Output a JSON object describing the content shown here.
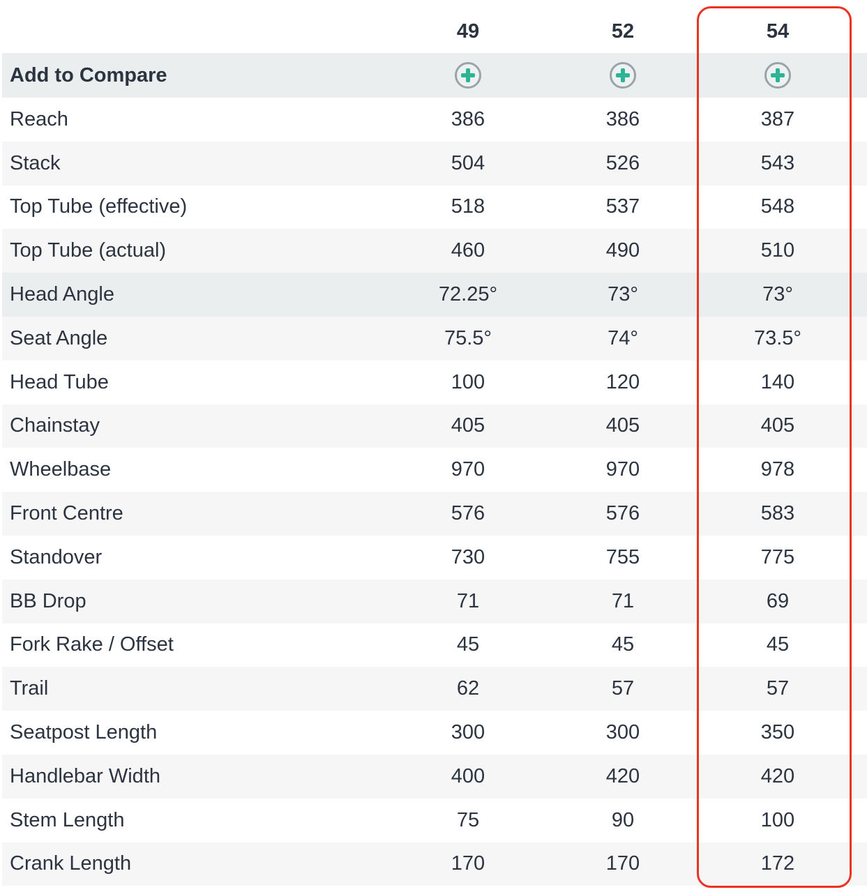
{
  "sizes": [
    "49",
    "52",
    "54"
  ],
  "compare_label": "Add to Compare",
  "highlight_color": "#ec3323",
  "add_icon": "plus-circle-icon",
  "rows": [
    {
      "label": "Reach",
      "values": [
        "386",
        "386",
        "387"
      ]
    },
    {
      "label": "Stack",
      "values": [
        "504",
        "526",
        "543"
      ]
    },
    {
      "label": "Top Tube (effective)",
      "values": [
        "518",
        "537",
        "548"
      ]
    },
    {
      "label": "Top Tube (actual)",
      "values": [
        "460",
        "490",
        "510"
      ]
    },
    {
      "label": "Head Angle",
      "values": [
        "72.25°",
        "73°",
        "73°"
      ]
    },
    {
      "label": "Seat Angle",
      "values": [
        "75.5°",
        "74°",
        "73.5°"
      ]
    },
    {
      "label": "Head Tube",
      "values": [
        "100",
        "120",
        "140"
      ]
    },
    {
      "label": "Chainstay",
      "values": [
        "405",
        "405",
        "405"
      ]
    },
    {
      "label": "Wheelbase",
      "values": [
        "970",
        "970",
        "978"
      ]
    },
    {
      "label": "Front Centre",
      "values": [
        "576",
        "576",
        "583"
      ]
    },
    {
      "label": "Standover",
      "values": [
        "730",
        "755",
        "775"
      ]
    },
    {
      "label": "BB Drop",
      "values": [
        "71",
        "71",
        "69"
      ]
    },
    {
      "label": "Fork Rake / Offset",
      "values": [
        "45",
        "45",
        "45"
      ]
    },
    {
      "label": "Trail",
      "values": [
        "62",
        "57",
        "57"
      ]
    },
    {
      "label": "Seatpost Length",
      "values": [
        "300",
        "300",
        "350"
      ]
    },
    {
      "label": "Handlebar Width",
      "values": [
        "400",
        "420",
        "420"
      ]
    },
    {
      "label": "Stem Length",
      "values": [
        "75",
        "90",
        "100"
      ]
    },
    {
      "label": "Crank Length",
      "values": [
        "170",
        "170",
        "172"
      ]
    }
  ]
}
